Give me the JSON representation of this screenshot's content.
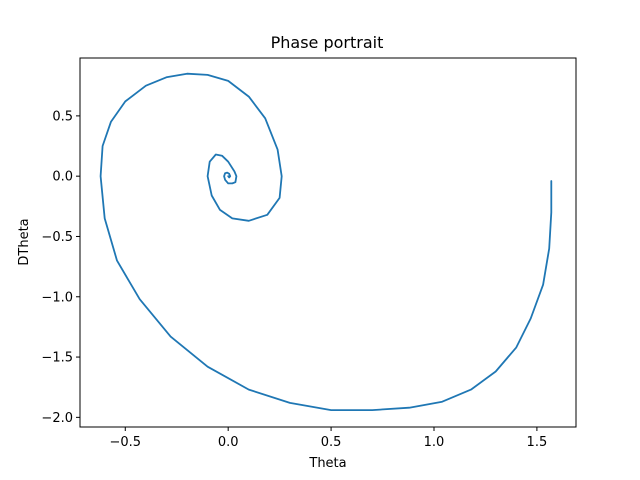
{
  "chart_data": {
    "type": "line",
    "title": "Phase portrait",
    "xlabel": "Theta",
    "ylabel": "DTheta",
    "xlim": [
      -0.72,
      1.69
    ],
    "ylim": [
      -2.08,
      0.98
    ],
    "grid": false,
    "legend": "none",
    "x_ticks": [
      -0.5,
      0.0,
      0.5,
      1.0,
      1.5
    ],
    "x_tick_labels": [
      "−0.5",
      "0.0",
      "0.5",
      "1.0",
      "1.5"
    ],
    "y_ticks": [
      0.5,
      0.0,
      -0.5,
      -1.0,
      -1.5,
      -2.0
    ],
    "y_tick_labels": [
      "0.5",
      "0.0",
      "−0.5",
      "−1.0",
      "−1.5",
      "−2.0"
    ],
    "series": [
      {
        "name": "trajectory",
        "color": "#1f77b4",
        "x": [
          1.57,
          1.57,
          1.56,
          1.53,
          1.47,
          1.4,
          1.3,
          1.18,
          1.04,
          0.88,
          0.7,
          0.5,
          0.3,
          0.1,
          -0.1,
          -0.28,
          -0.43,
          -0.54,
          -0.6,
          -0.62,
          -0.61,
          -0.57,
          -0.5,
          -0.4,
          -0.3,
          -0.2,
          -0.1,
          0.0,
          0.1,
          0.18,
          0.24,
          0.26,
          0.25,
          0.19,
          0.1,
          0.02,
          -0.04,
          -0.08,
          -0.1,
          -0.09,
          -0.06,
          -0.03,
          0.0,
          0.03,
          0.04,
          0.035,
          0.02,
          0.0,
          -0.015,
          -0.02,
          -0.015,
          -0.005,
          0.005,
          0.01,
          0.005,
          0.0
        ],
        "y": [
          -0.04,
          -0.3,
          -0.6,
          -0.9,
          -1.18,
          -1.42,
          -1.62,
          -1.77,
          -1.87,
          -1.92,
          -1.94,
          -1.94,
          -1.88,
          -1.77,
          -1.58,
          -1.33,
          -1.02,
          -0.7,
          -0.35,
          0.0,
          0.25,
          0.45,
          0.62,
          0.75,
          0.82,
          0.85,
          0.84,
          0.79,
          0.66,
          0.48,
          0.22,
          0.0,
          -0.18,
          -0.32,
          -0.37,
          -0.35,
          -0.28,
          -0.16,
          0.0,
          0.12,
          0.18,
          0.17,
          0.12,
          0.04,
          0.0,
          -0.05,
          -0.06,
          -0.06,
          -0.03,
          0.0,
          0.025,
          0.03,
          0.02,
          0.0,
          -0.01,
          0.0
        ]
      }
    ]
  }
}
